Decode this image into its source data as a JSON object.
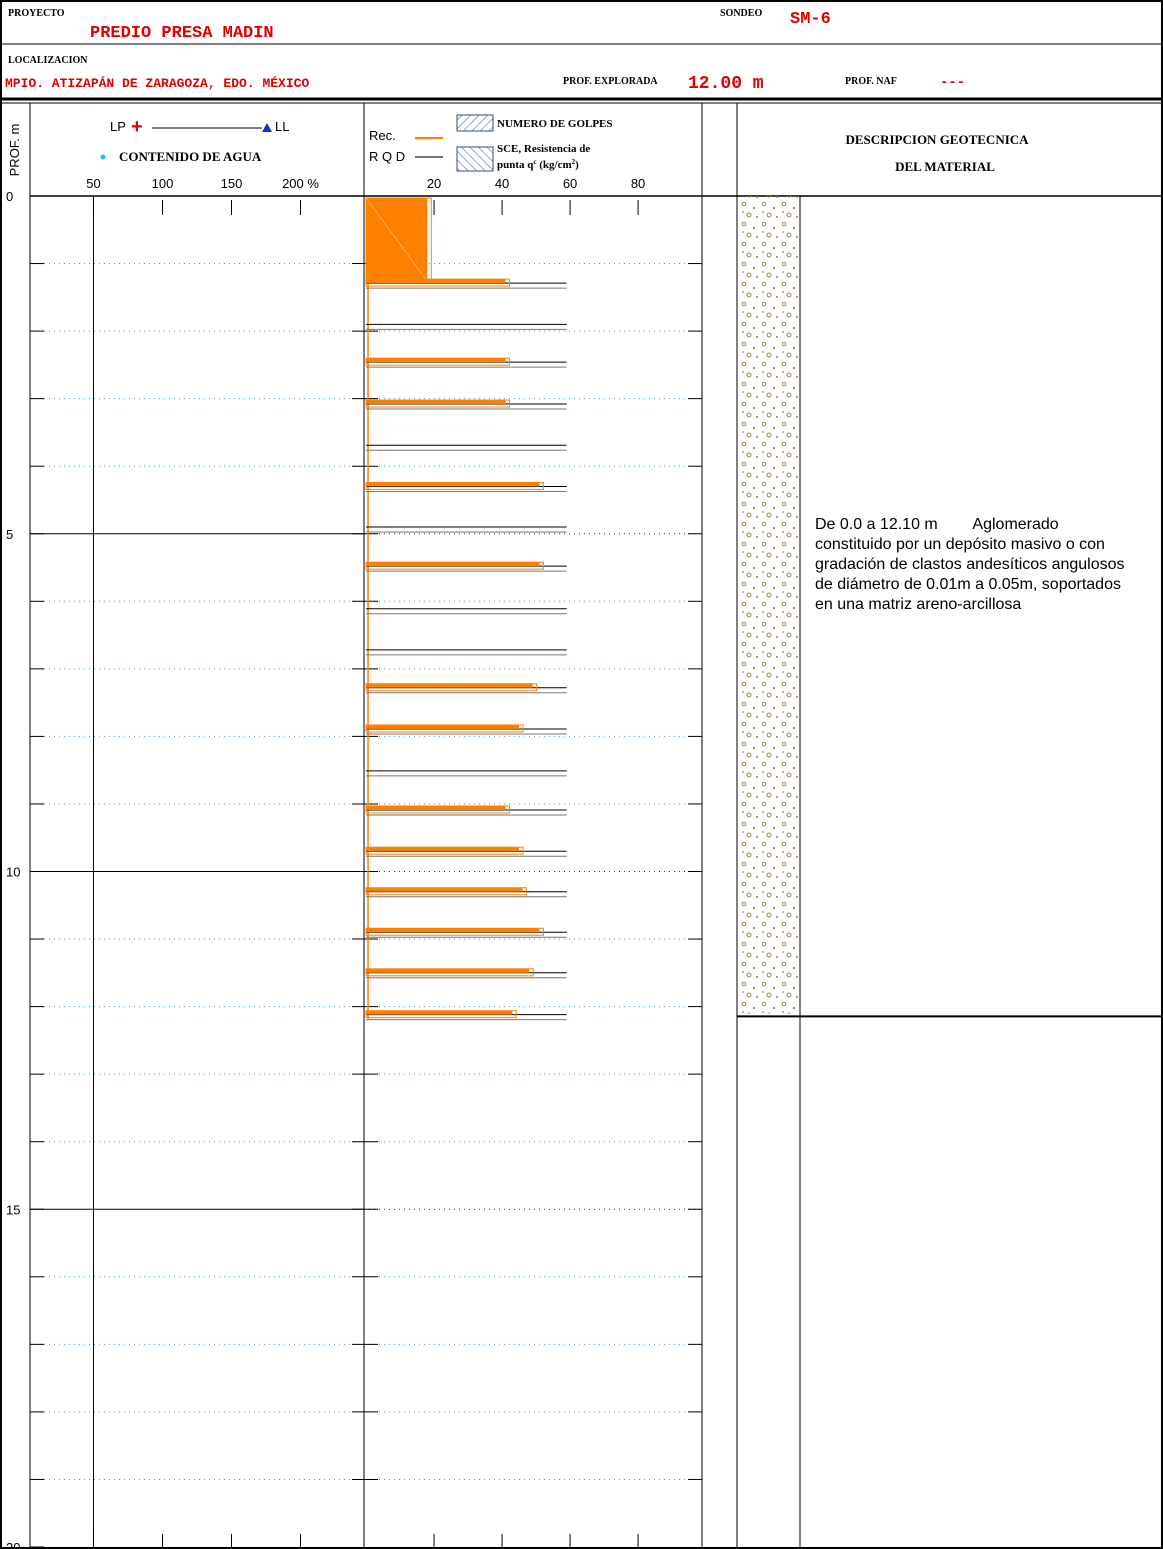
{
  "header": {
    "project_label": "PROYECTO",
    "project": "PREDIO PRESA MADIN",
    "boring_label": "SONDEO",
    "boring": "SM-6",
    "location_label": "LOCALIZACION",
    "location": "MPIO. ATIZAPÁN DE ZARAGOZA, EDO. MÉXICO",
    "depth_explored_label": "PROF. EXPLORADA",
    "depth_explored": "12.00 m",
    "naf_label": "PROF. NAF",
    "naf": "---"
  },
  "chart_data": [
    {
      "type": "moisture",
      "ylabel": "PROF. m",
      "lp_label": "LP",
      "ll_label": "LL",
      "legend": "CONTENIDO DE AGUA",
      "xlim": [
        4,
        246
      ],
      "xticks": [
        50,
        100,
        150,
        {
          "value": 200,
          "label": "200 %"
        }
      ],
      "xgrid": [
        50
      ],
      "ylim": [
        0,
        20
      ],
      "yticks": [
        0,
        5,
        10,
        15,
        20
      ],
      "minor_yticks": [
        1,
        2,
        3,
        4,
        6,
        7,
        8,
        9,
        11,
        12,
        13,
        14,
        16,
        17,
        18,
        19
      ]
    },
    {
      "type": "bar",
      "rec_label": "Rec.",
      "sce_label": "SCE, Resistencia de",
      "sce_unit": [
        "punta q",
        "c",
        " (kg/cm",
        "2",
        ")"
      ],
      "xlim": [
        -0.6,
        98.8
      ],
      "xticks": [
        20,
        40,
        60,
        80
      ],
      "ylim": [
        0,
        20
      ],
      "block": {
        "from": 0,
        "to": 1.26,
        "value": 18
      },
      "depths": [
        1.26,
        1.87,
        2.43,
        3.05,
        3.66,
        4.27,
        4.87,
        5.45,
        6.08,
        6.69,
        7.25,
        7.86,
        8.48,
        9.06,
        9.67,
        10.27,
        10.87,
        11.47,
        12.09
      ],
      "series": [
        {
          "name": "NUMERO DE GOLPES",
          "color": "#ff8000",
          "values": [
            41,
            null,
            41,
            41,
            null,
            51,
            null,
            51,
            null,
            null,
            49,
            45,
            null,
            41,
            45,
            46,
            51,
            48,
            43
          ]
        },
        {
          "name": "R Q D",
          "color": "#777777",
          "values": [
            59,
            59,
            59,
            59,
            59,
            59,
            59,
            59,
            59,
            59,
            59,
            59,
            59,
            59,
            59,
            59,
            59,
            59,
            59
          ]
        }
      ]
    },
    {
      "type": "description",
      "title": [
        "DESCRIPCION GEOTECNICA",
        "DEL MATERIAL"
      ],
      "ylim": [
        0,
        20
      ],
      "layer": {
        "from": 0,
        "to": 12.1
      },
      "text": [
        "De 0.0 a 12.10 m        Aglomerado",
        "constituido por un depósito masivo o con",
        "gradación de clastos andesíticos angulosos",
        "de diámetro de 0.01m a 0.05m, soportados",
        "en una matriz areno-arcillosa"
      ]
    }
  ]
}
